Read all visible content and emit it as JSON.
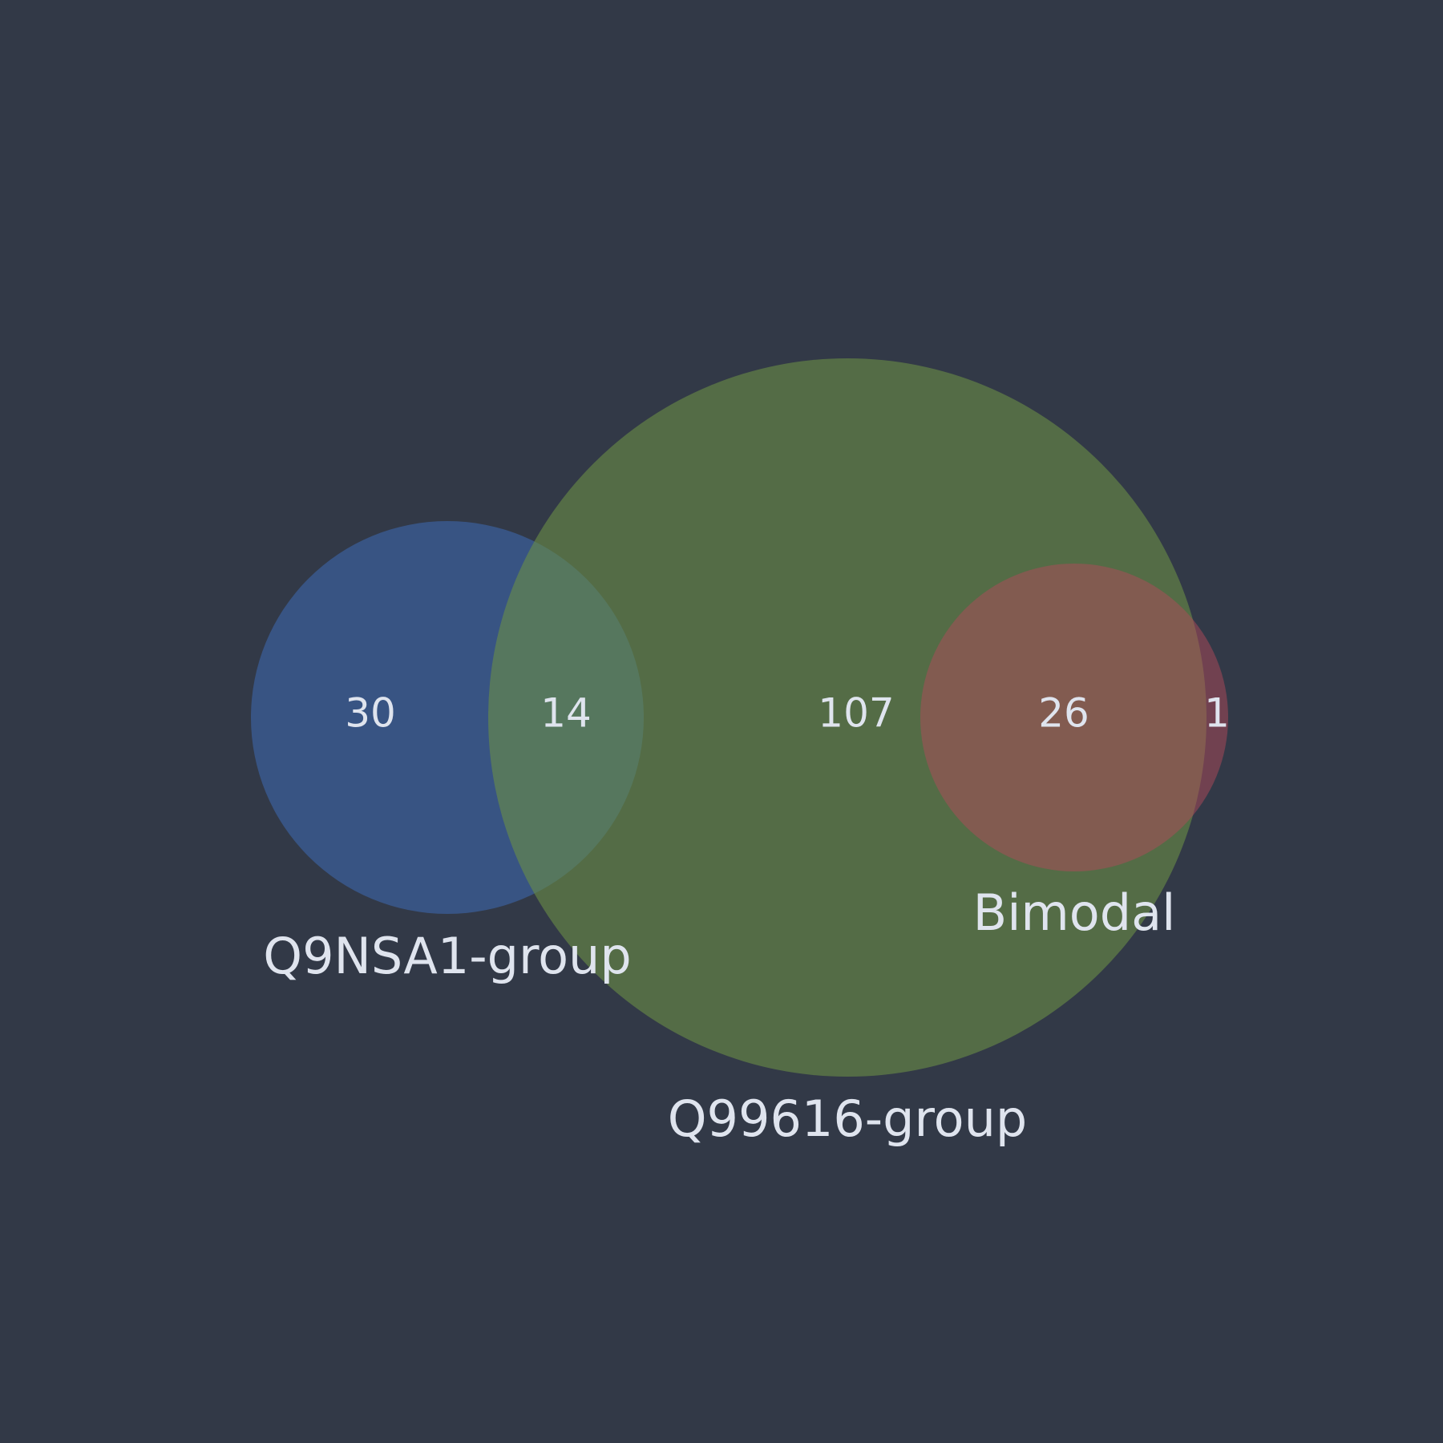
{
  "background": "#323947",
  "text_color": "#dfe4ee",
  "sets": [
    {
      "name": "Q9NSA1-group",
      "color": "#3b5d97",
      "size": 44
    },
    {
      "name": "Q99616-group",
      "color": "#5d7d45",
      "size": 147
    },
    {
      "name": "Bimodal",
      "color": "#b04a5a",
      "size": 27
    }
  ],
  "regions": [
    {
      "sets": [
        "Q9NSA1-group"
      ],
      "count": "30"
    },
    {
      "sets": [
        "Q9NSA1-group",
        "Q99616-group"
      ],
      "count": "14"
    },
    {
      "sets": [
        "Q99616-group"
      ],
      "count": "107"
    },
    {
      "sets": [
        "Q99616-group",
        "Bimodal"
      ],
      "count": "26"
    },
    {
      "sets": [
        "Bimodal"
      ],
      "count": "1"
    }
  ]
}
